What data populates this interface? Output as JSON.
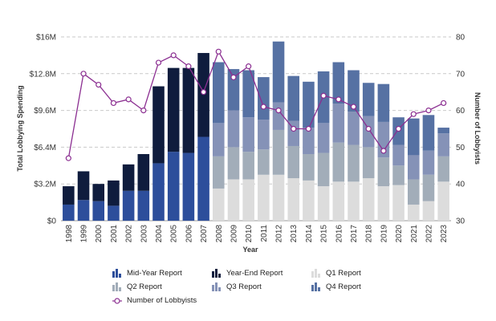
{
  "chart_data": {
    "type": "bar",
    "stacked": true,
    "xlabel": "Year",
    "ylabel": "Total Lobbying Spending",
    "y2label": "Number of Lobbyists",
    "ylim": [
      0,
      16
    ],
    "y_ticks": [
      0,
      3.2,
      6.4,
      9.6,
      12.8,
      16
    ],
    "y_tick_labels": [
      "$0",
      "$3.2M",
      "$6.4M",
      "$9.6M",
      "$12.8M",
      "$16M"
    ],
    "y2lim": [
      30,
      80
    ],
    "y2_ticks": [
      30,
      40,
      50,
      60,
      70,
      80
    ],
    "y2_tick_labels": [
      "30",
      "40",
      "50",
      "60",
      "70",
      "80"
    ],
    "grid": true,
    "legend_position": "bottom",
    "categories": [
      "1998",
      "1999",
      "2000",
      "2001",
      "2002",
      "2003",
      "2004",
      "2005",
      "2006",
      "2007",
      "2008",
      "2009",
      "2010",
      "2011",
      "2012",
      "2013",
      "2014",
      "2015",
      "2016",
      "2017",
      "2018",
      "2019",
      "2020",
      "2021",
      "2022",
      "2023"
    ],
    "series": [
      {
        "name": "Mid-Year Report",
        "color": "#2d4e9b",
        "values": [
          1.4,
          1.8,
          1.7,
          1.3,
          2.6,
          2.6,
          5.0,
          6.0,
          5.9,
          7.3,
          0,
          0,
          0,
          0,
          0,
          0,
          0,
          0,
          0,
          0,
          0,
          0,
          0,
          0,
          0,
          0
        ]
      },
      {
        "name": "Year-End Report",
        "color": "#0f1c3d",
        "values": [
          1.6,
          2.5,
          1.5,
          2.2,
          2.3,
          3.2,
          6.7,
          7.3,
          7.4,
          7.3,
          0,
          0,
          0,
          0,
          0,
          0,
          0,
          0,
          0,
          0,
          0,
          0,
          0,
          0,
          0,
          0
        ]
      },
      {
        "name": "Q1 Report",
        "color": "#dcdcdc",
        "values": [
          0,
          0,
          0,
          0,
          0,
          0,
          0,
          0,
          0,
          0,
          2.8,
          3.6,
          3.6,
          4.0,
          4.0,
          3.7,
          3.5,
          3.0,
          3.4,
          3.4,
          3.7,
          3.0,
          3.1,
          1.4,
          1.7,
          3.4
        ]
      },
      {
        "name": "Q2 Report",
        "color": "#a2adb9",
        "values": [
          0,
          0,
          0,
          0,
          0,
          0,
          0,
          0,
          0,
          0,
          2.8,
          2.8,
          2.4,
          2.2,
          3.9,
          2.8,
          2.3,
          2.9,
          3.4,
          3.2,
          2.7,
          2.5,
          1.7,
          2.2,
          2.3,
          2.2
        ]
      },
      {
        "name": "Q3 Report",
        "color": "#8592b7",
        "values": [
          0,
          0,
          0,
          0,
          0,
          0,
          0,
          0,
          0,
          0,
          2.9,
          3.2,
          3.0,
          2.6,
          2.4,
          2.2,
          2.3,
          2.6,
          3.4,
          2.9,
          2.7,
          3.1,
          1.8,
          2.1,
          2.1,
          2.0
        ]
      },
      {
        "name": "Q4 Report",
        "color": "#5671a3",
        "values": [
          0,
          0,
          0,
          0,
          0,
          0,
          0,
          0,
          0,
          0,
          5.3,
          3.6,
          4.1,
          3.7,
          5.3,
          3.9,
          4.0,
          4.5,
          3.6,
          3.6,
          2.9,
          3.3,
          2.4,
          3.2,
          3.1,
          0.5
        ]
      }
    ],
    "line_series": {
      "name": "Number of Lobbyists",
      "color": "#8b2e91",
      "axis": "right",
      "values": [
        47,
        70,
        67,
        62,
        63,
        60,
        73,
        75,
        72,
        65,
        76,
        69,
        72,
        61,
        60,
        55,
        55,
        64,
        63,
        61,
        55,
        49,
        55,
        59,
        60,
        62
      ]
    }
  }
}
